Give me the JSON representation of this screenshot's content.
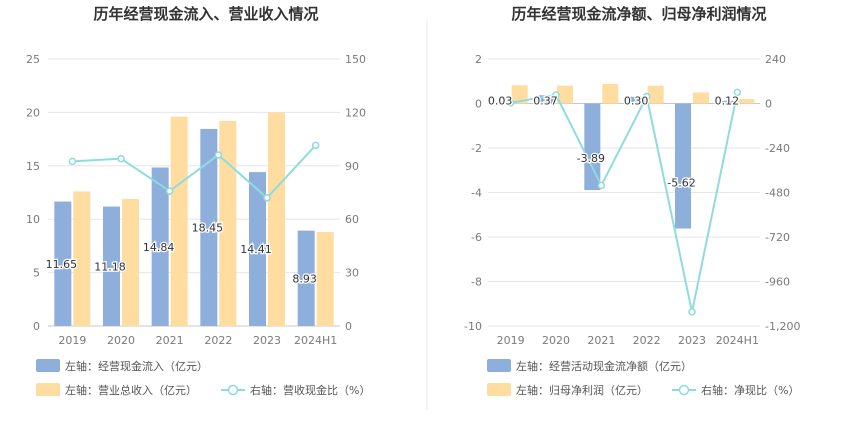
{
  "colors": {
    "bar_primary": "#8eaedc",
    "bar_secondary": "#ffdca0",
    "line": "#8fdbe0",
    "grid": "#e4e6ee",
    "divider": "#e8e8e8"
  },
  "chart_data": [
    {
      "type": "bar",
      "title": "历年经营现金流入、营业收入情况",
      "categories": [
        "2019",
        "2020",
        "2021",
        "2022",
        "2023",
        "2024H1"
      ],
      "ylim_left": [
        0,
        25
      ],
      "yticks_left": [
        "0",
        "5",
        "10",
        "15",
        "20",
        "25"
      ],
      "ylim_right": [
        0,
        150
      ],
      "yticks_right": [
        "0",
        "30",
        "60",
        "90",
        "120",
        "150"
      ],
      "grid": true,
      "legend_position": "bottom-left",
      "series": [
        {
          "name": "左轴：经营现金流入（亿元）",
          "kind": "bar",
          "axis": "left",
          "color": "#8eaedc",
          "values": [
            11.65,
            11.18,
            14.84,
            18.45,
            14.41,
            8.93
          ],
          "labels": [
            "11.65",
            "11.18",
            "14.84",
            "18.45",
            "14.41",
            "8.93"
          ]
        },
        {
          "name": "左轴：营业总收入（亿元）",
          "kind": "bar",
          "axis": "left",
          "color": "#ffdca0",
          "values": [
            12.6,
            11.9,
            19.6,
            19.2,
            20.0,
            8.8
          ]
        },
        {
          "name": "右轴：营收现金比（%）",
          "kind": "line",
          "axis": "right",
          "color": "#8fdbe0",
          "values": [
            92.5,
            94.0,
            75.8,
            96.1,
            72.0,
            101.5
          ]
        }
      ]
    },
    {
      "type": "bar",
      "title": "历年经营现金流净额、归母净利润情况",
      "categories": [
        "2019",
        "2020",
        "2021",
        "2022",
        "2023",
        "2024H1"
      ],
      "ylim_left": [
        -10,
        2
      ],
      "yticks_left": [
        "-10",
        "-8",
        "-6",
        "-4",
        "-2",
        "0",
        "2"
      ],
      "ylim_right": [
        -1200,
        240
      ],
      "yticks_right": [
        "-1,200",
        "-960",
        "-720",
        "-480",
        "-240",
        "0",
        "240"
      ],
      "grid": true,
      "legend_position": "bottom-left",
      "series": [
        {
          "name": "左轴：经营活动现金流净额（亿元）",
          "kind": "bar",
          "axis": "left",
          "color": "#8eaedc",
          "values": [
            0.03,
            0.37,
            -3.89,
            0.3,
            -5.62,
            0.12
          ],
          "labels": [
            "0.03",
            "0.37",
            "-3.89",
            "0.30",
            "-5.62",
            "0.12"
          ]
        },
        {
          "name": "左轴：归母净利润（亿元）",
          "kind": "bar",
          "axis": "left",
          "color": "#ffdca0",
          "values": [
            0.82,
            0.8,
            0.88,
            0.8,
            0.5,
            0.2
          ]
        },
        {
          "name": "右轴：净现比（%）",
          "kind": "line",
          "axis": "right",
          "color": "#8fdbe0",
          "values": [
            3.7,
            46.3,
            -442,
            37.5,
            -1124,
            60
          ]
        }
      ]
    }
  ]
}
